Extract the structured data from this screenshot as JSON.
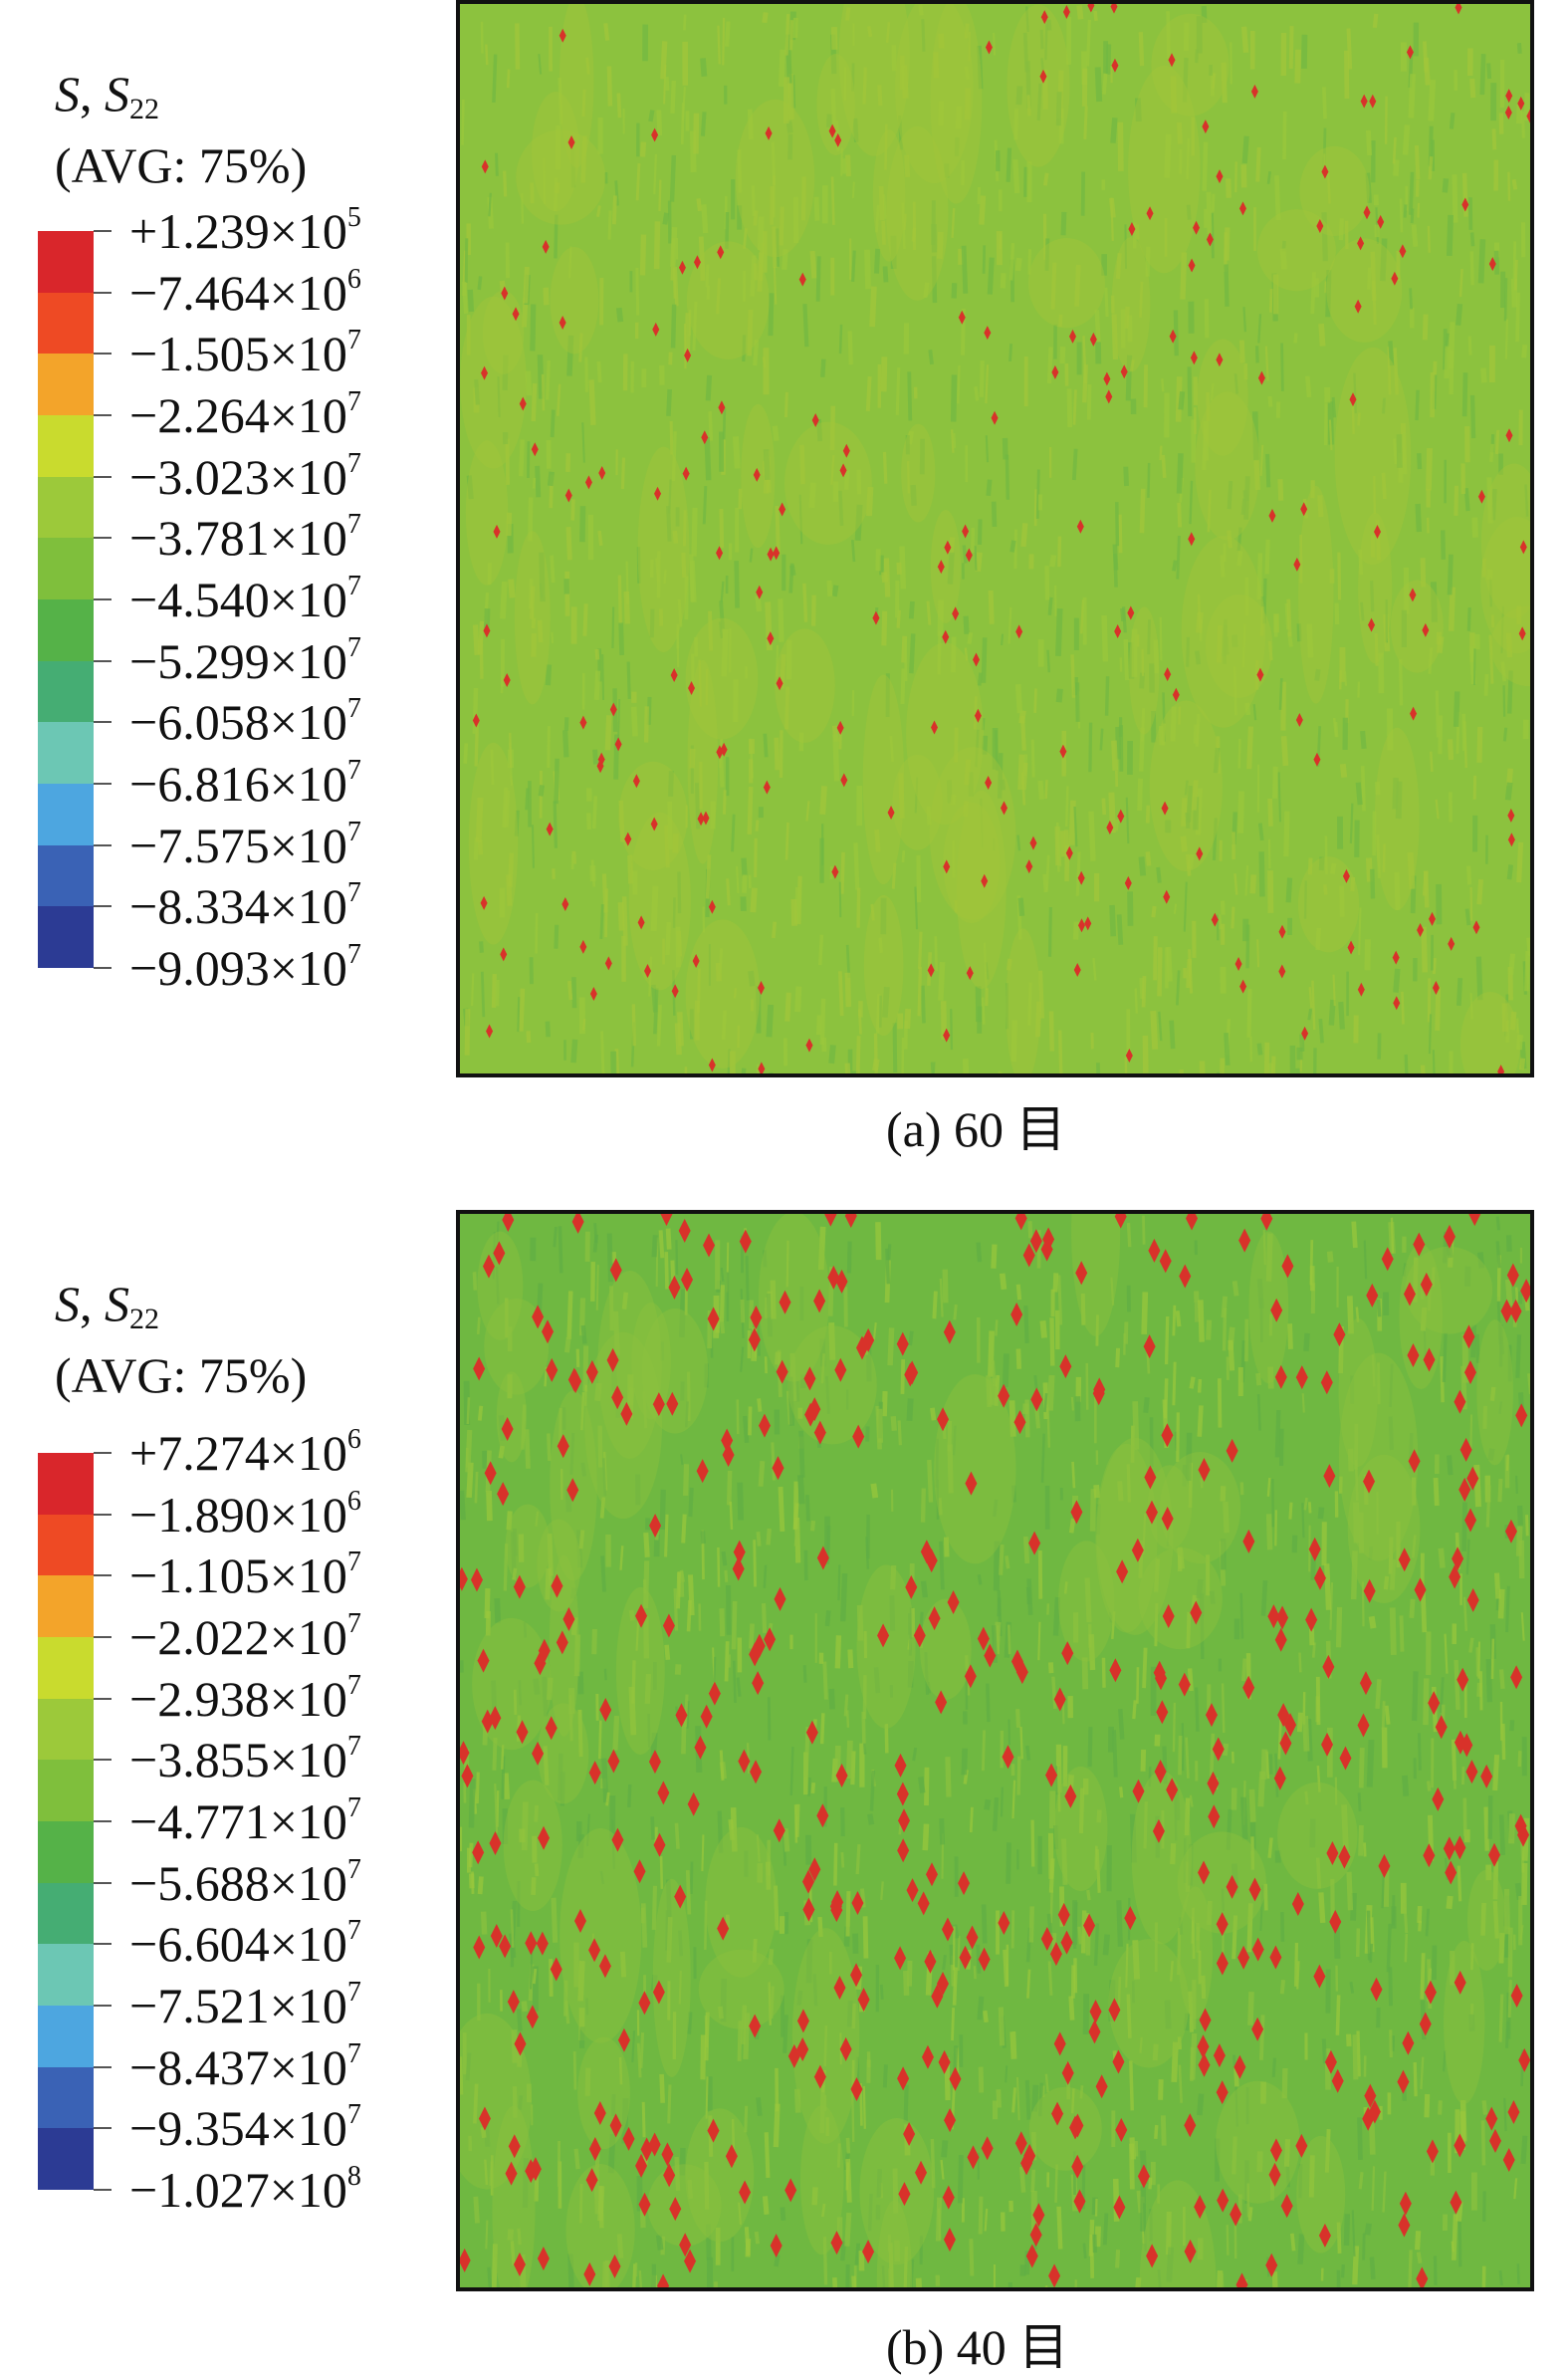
{
  "panels": [
    {
      "id": "a",
      "caption": "(a) 60 目",
      "legend": {
        "variable": "S",
        "component_base": "S",
        "component_sub": "22",
        "averaging": "(AVG: 75%)",
        "values": [
          {
            "sign": "+",
            "mantissa": "1.239",
            "exp": "5"
          },
          {
            "sign": "−",
            "mantissa": "7.464",
            "exp": "6"
          },
          {
            "sign": "−",
            "mantissa": "1.505",
            "exp": "7"
          },
          {
            "sign": "−",
            "mantissa": "2.264",
            "exp": "7"
          },
          {
            "sign": "−",
            "mantissa": "3.023",
            "exp": "7"
          },
          {
            "sign": "−",
            "mantissa": "3.781",
            "exp": "7"
          },
          {
            "sign": "−",
            "mantissa": "4.540",
            "exp": "7"
          },
          {
            "sign": "−",
            "mantissa": "5.299",
            "exp": "7"
          },
          {
            "sign": "−",
            "mantissa": "6.058",
            "exp": "7"
          },
          {
            "sign": "−",
            "mantissa": "6.816",
            "exp": "7"
          },
          {
            "sign": "−",
            "mantissa": "7.575",
            "exp": "7"
          },
          {
            "sign": "−",
            "mantissa": "8.334",
            "exp": "7"
          },
          {
            "sign": "−",
            "mantissa": "9.093",
            "exp": "7"
          }
        ],
        "colors": [
          "#d9262b",
          "#ee4a24",
          "#f3a42a",
          "#c9db2e",
          "#9cc93a",
          "#7fbf3c",
          "#55b248",
          "#45ad73",
          "#6cc7b4",
          "#4da6e0",
          "#3a62b5",
          "#2c3b94"
        ]
      },
      "map": {
        "background": "#8cc23e",
        "streak_colors": [
          "#a2c63a",
          "#71b843",
          "#9ac83c"
        ],
        "hotspot_color": "#d8322a",
        "hotspot_density": "sparse"
      }
    },
    {
      "id": "b",
      "caption": "(b) 40 目",
      "legend": {
        "variable": "S",
        "component_base": "S",
        "component_sub": "22",
        "averaging": "(AVG: 75%)",
        "values": [
          {
            "sign": "+",
            "mantissa": "7.274",
            "exp": "6"
          },
          {
            "sign": "−",
            "mantissa": "1.890",
            "exp": "6"
          },
          {
            "sign": "−",
            "mantissa": "1.105",
            "exp": "7"
          },
          {
            "sign": "−",
            "mantissa": "2.022",
            "exp": "7"
          },
          {
            "sign": "−",
            "mantissa": "2.938",
            "exp": "7"
          },
          {
            "sign": "−",
            "mantissa": "3.855",
            "exp": "7"
          },
          {
            "sign": "−",
            "mantissa": "4.771",
            "exp": "7"
          },
          {
            "sign": "−",
            "mantissa": "5.688",
            "exp": "7"
          },
          {
            "sign": "−",
            "mantissa": "6.604",
            "exp": "7"
          },
          {
            "sign": "−",
            "mantissa": "7.521",
            "exp": "7"
          },
          {
            "sign": "−",
            "mantissa": "8.437",
            "exp": "7"
          },
          {
            "sign": "−",
            "mantissa": "9.354",
            "exp": "7"
          },
          {
            "sign": "−",
            "mantissa": "1.027",
            "exp": "8"
          }
        ],
        "colors": [
          "#d9262b",
          "#ee4a24",
          "#f3a42a",
          "#c9db2e",
          "#9cc93a",
          "#7fbf3c",
          "#55b248",
          "#45ad73",
          "#6cc7b4",
          "#4da6e0",
          "#3a62b5",
          "#2c3b94"
        ]
      },
      "map": {
        "background": "#6fb841",
        "streak_colors": [
          "#8cc23e",
          "#5fae44",
          "#9ac83c"
        ],
        "hotspot_color": "#d8322a",
        "hotspot_density": "dense"
      }
    }
  ]
}
